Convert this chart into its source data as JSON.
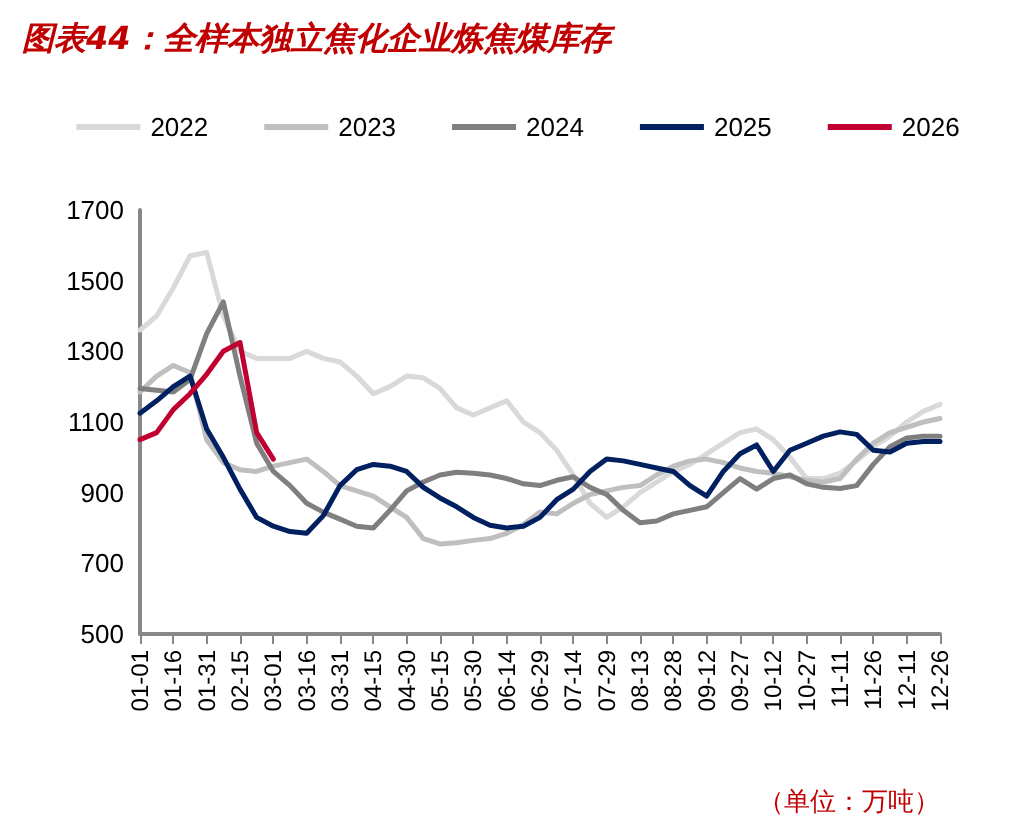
{
  "chart_data": {
    "type": "line",
    "title": "图表44：全样本独立焦化企业炼焦煤库存",
    "annotations": [
      "（单位：万吨）"
    ],
    "categories": [
      "01-01",
      null,
      "01-16",
      null,
      "01-31",
      null,
      "02-15",
      null,
      "03-01",
      null,
      "03-16",
      null,
      "03-31",
      null,
      "04-15",
      null,
      "04-30",
      null,
      "05-15",
      null,
      "05-30",
      null,
      "06-14",
      null,
      "06-29",
      null,
      "07-14",
      null,
      "07-29",
      null,
      "08-13",
      null,
      "08-28",
      null,
      "09-12",
      null,
      "09-27",
      null,
      "10-12",
      null,
      "10-27",
      null,
      "11-11",
      null,
      "11-26",
      null,
      "12-11",
      null,
      "12-26"
    ],
    "series": [
      {
        "name": "2022",
        "color": "#d9d9d9",
        "values": [
          1360,
          1400,
          1480,
          1570,
          1580,
          1400,
          1300,
          1280,
          1280,
          1280,
          1300,
          1280,
          1270,
          1230,
          1180,
          1200,
          1230,
          1225,
          1195,
          1140,
          1120,
          1140,
          1160,
          1100,
          1070,
          1020,
          950,
          870,
          830,
          860,
          900,
          930,
          960,
          980,
          1010,
          1040,
          1070,
          1080,
          1050,
          1000,
          940,
          940,
          955,
          990,
          1030,
          1060,
          1100,
          1130,
          1150
        ]
      },
      {
        "name": "2023",
        "color": "#bfbfbf",
        "values": [
          1185,
          1230,
          1260,
          1240,
          1050,
          985,
          965,
          960,
          975,
          985,
          995,
          960,
          920,
          905,
          890,
          860,
          830,
          770,
          755,
          758,
          765,
          770,
          785,
          810,
          845,
          840,
          870,
          895,
          905,
          915,
          920,
          950,
          975,
          990,
          995,
          985,
          970,
          960,
          955,
          945,
          935,
          930,
          940,
          995,
          1040,
          1070,
          1085,
          1100,
          1110
        ]
      },
      {
        "name": "2024",
        "color": "#7f7f7f",
        "values": [
          1195,
          1190,
          1185,
          1220,
          1350,
          1440,
          1230,
          1040,
          960,
          920,
          870,
          845,
          825,
          805,
          800,
          850,
          905,
          930,
          950,
          958,
          955,
          950,
          940,
          925,
          920,
          935,
          945,
          915,
          895,
          850,
          815,
          820,
          840,
          850,
          860,
          900,
          940,
          910,
          940,
          950,
          925,
          915,
          912,
          920,
          980,
          1030,
          1055,
          1060,
          1060
        ]
      },
      {
        "name": "2025",
        "color": "#002060",
        "values": [
          1125,
          1160,
          1200,
          1230,
          1080,
          1000,
          910,
          830,
          805,
          790,
          785,
          835,
          920,
          965,
          980,
          975,
          960,
          915,
          885,
          860,
          830,
          808,
          800,
          805,
          830,
          880,
          910,
          960,
          995,
          990,
          980,
          970,
          960,
          920,
          890,
          960,
          1010,
          1035,
          960,
          1020,
          1040,
          1060,
          1072,
          1065,
          1020,
          1015,
          1040,
          1045,
          1045
        ]
      },
      {
        "name": "2026",
        "color": "#c00030",
        "values": [
          1050,
          1070,
          1135,
          1180,
          1235,
          1300,
          1325,
          1070,
          995,
          null,
          null,
          null,
          null,
          null,
          null,
          null,
          null,
          null,
          null,
          null,
          null,
          null,
          null,
          null,
          null,
          null,
          null,
          null,
          null,
          null,
          null,
          null,
          null,
          null,
          null,
          null,
          null,
          null,
          null,
          null,
          null,
          null,
          null,
          null,
          null,
          null,
          null,
          null,
          null
        ]
      }
    ],
    "ylim": [
      500,
      1700
    ],
    "yticks": [
      500,
      700,
      900,
      1100,
      1300,
      1500,
      1700
    ],
    "grid": false,
    "legend": "top",
    "marker": "none",
    "line_style": "solid"
  }
}
